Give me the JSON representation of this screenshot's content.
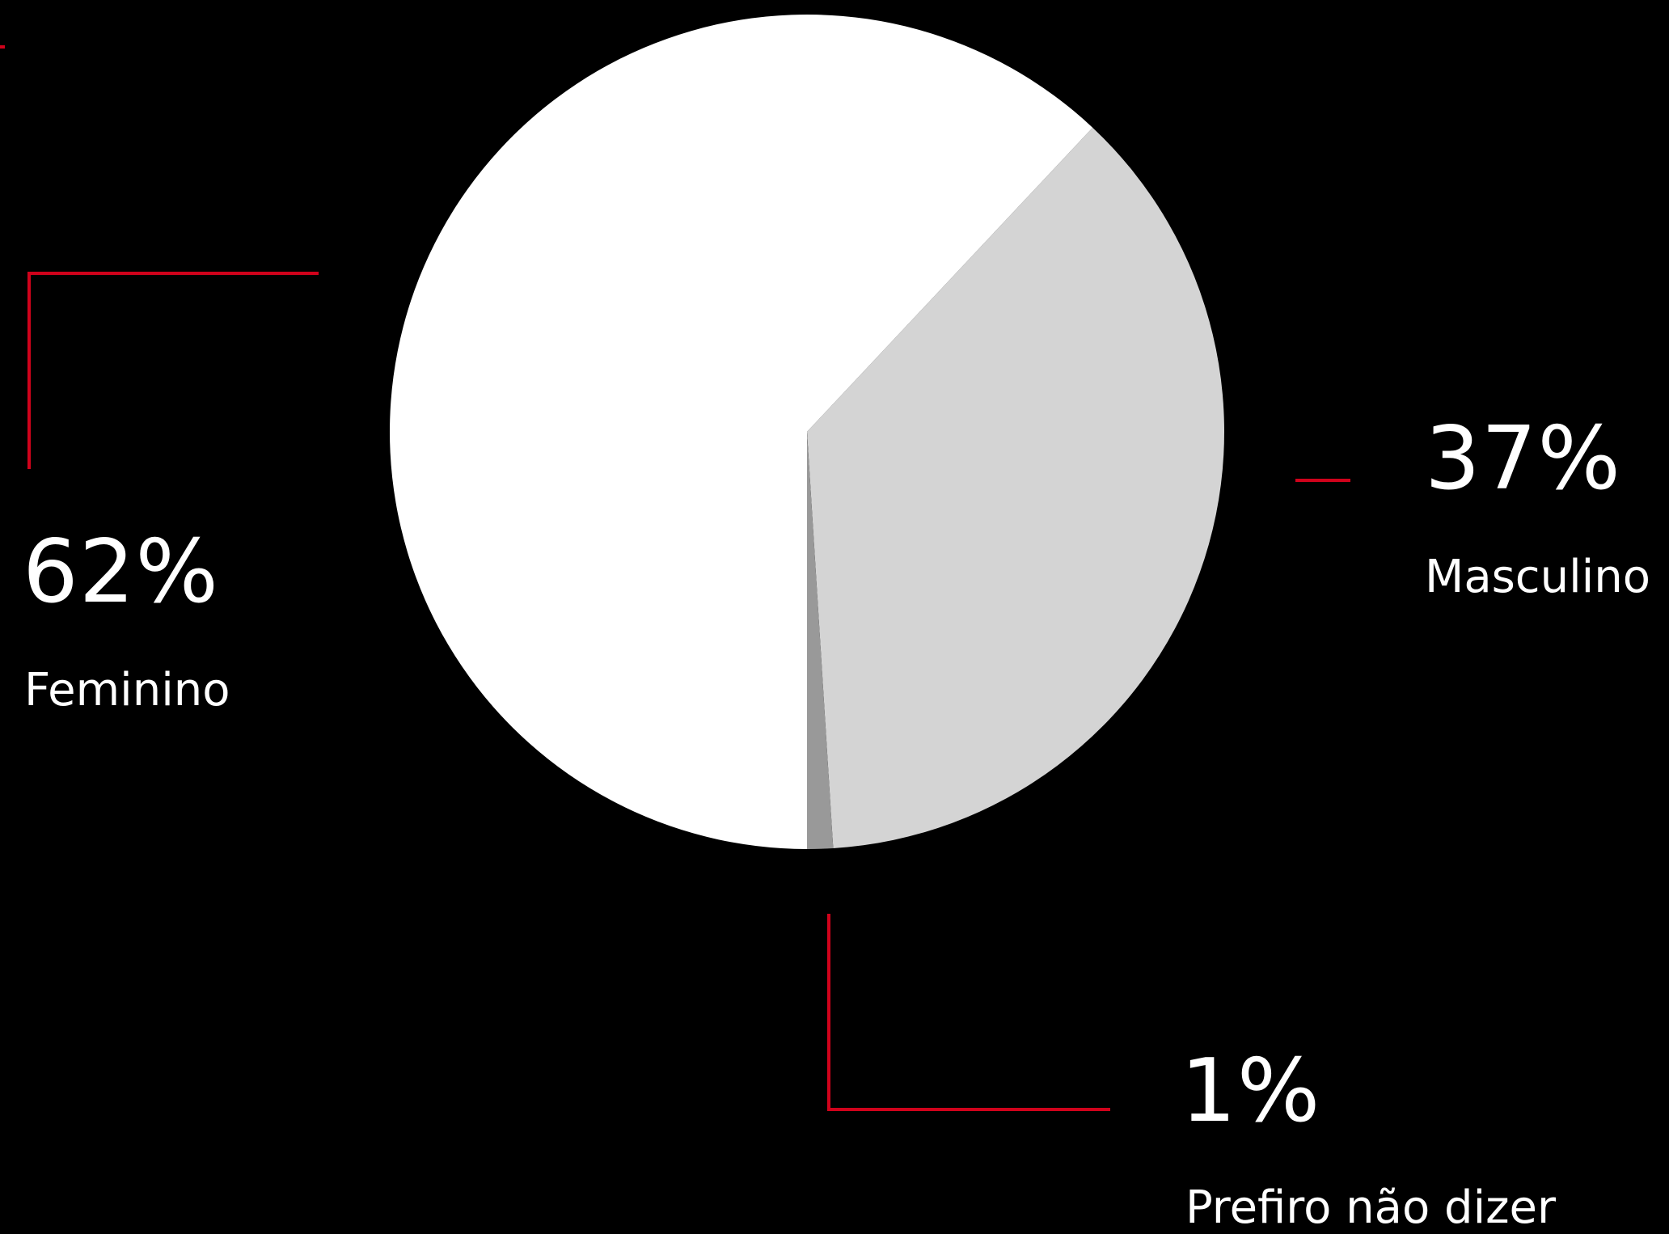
{
  "chart_data": {
    "type": "pie",
    "categories": [
      "Feminino",
      "Masculino",
      "Prefiro não  dizer"
    ],
    "values": [
      62,
      37,
      1
    ],
    "labels": [
      "62%",
      "37%",
      "1%"
    ],
    "colors": [
      "#ffffff",
      "#d4d4d4",
      "#999999"
    ],
    "start_angle_deg": 0,
    "direction": "counterclockwise",
    "legend": "none",
    "leader_line_color": "#d0021b"
  }
}
